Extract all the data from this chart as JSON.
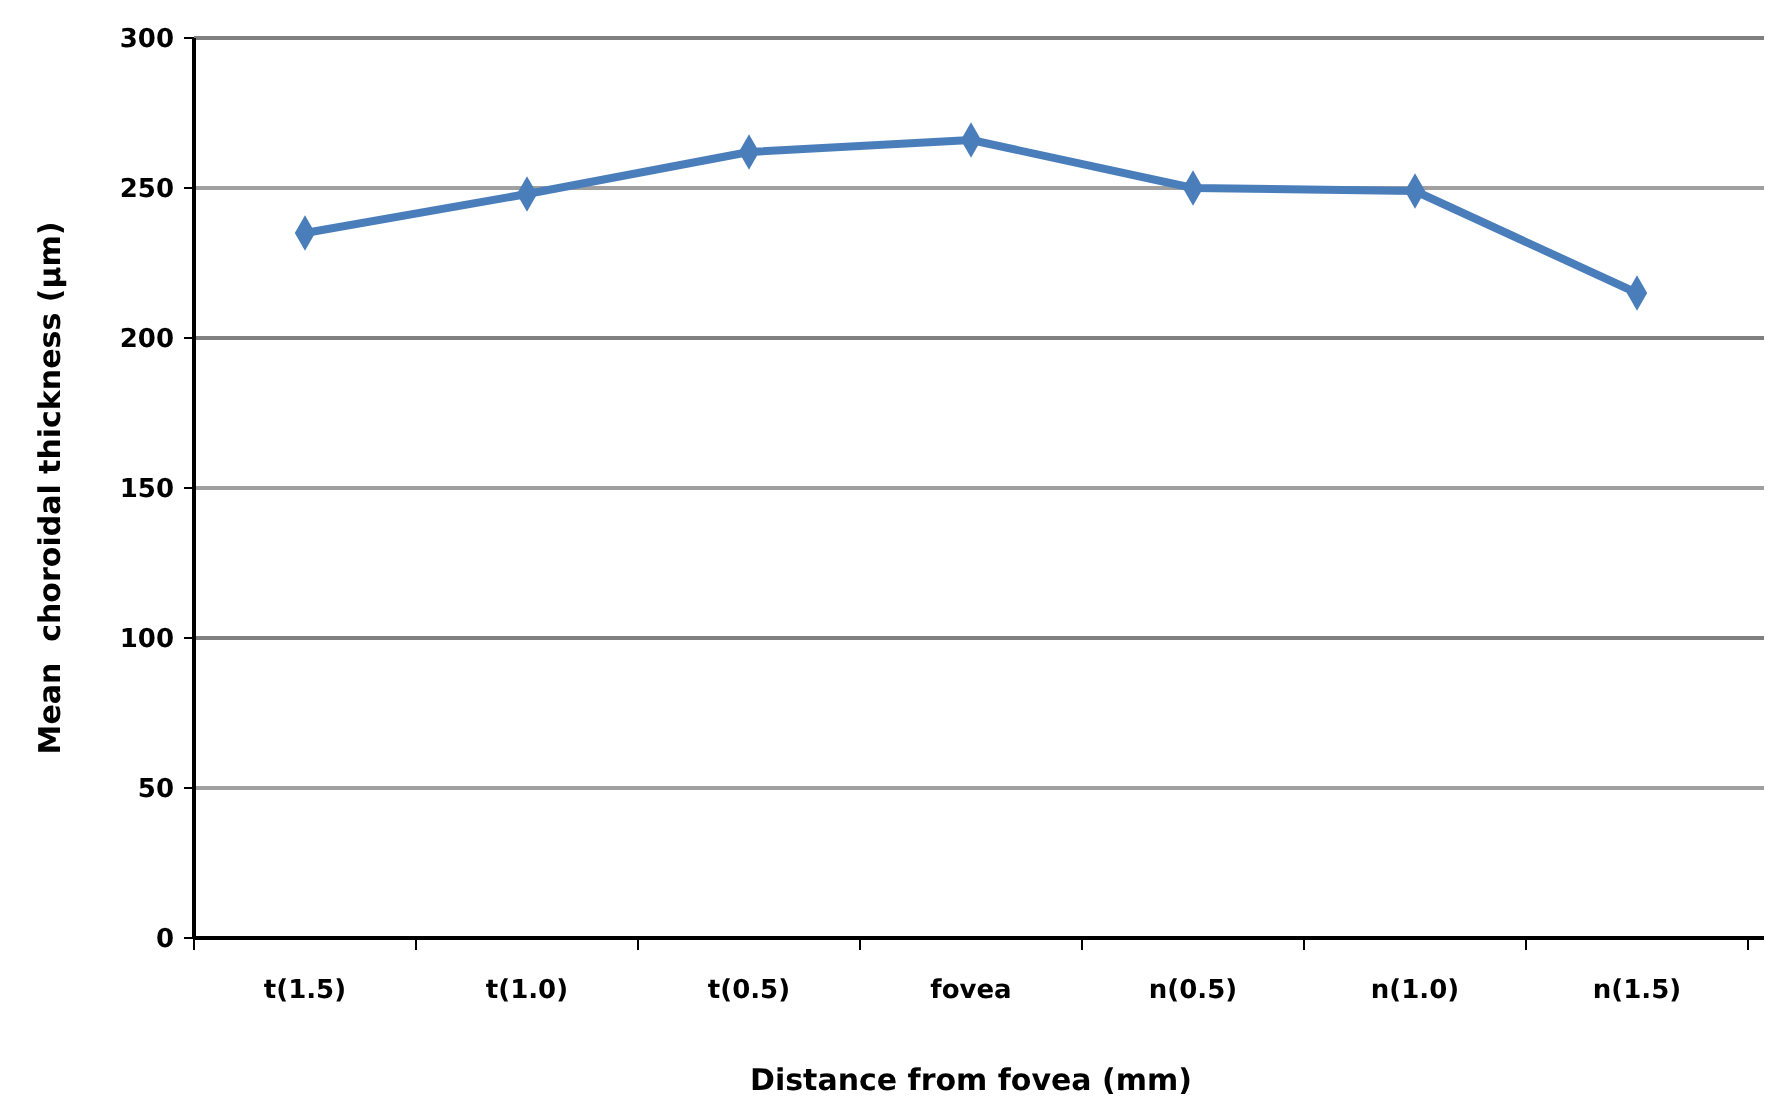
{
  "chart_data": {
    "type": "line",
    "xlabel": "Distance from fovea (mm)",
    "ylabel": "Mean  choroidal thickness (µm)",
    "categories": [
      "t(1.5)",
      "t(1.0)",
      "t(0.5)",
      "fovea",
      "n(0.5)",
      "n(1.0)",
      "n(1.5)"
    ],
    "series": [
      {
        "color": "#4a7ebb",
        "values": [
          235,
          248,
          262,
          266,
          250,
          249,
          215
        ]
      }
    ],
    "ylim": [
      0,
      300
    ],
    "yticks": [
      0,
      50,
      100,
      150,
      200,
      250,
      300
    ],
    "grid": "y",
    "marker": "diamond",
    "line_style": "solid"
  }
}
